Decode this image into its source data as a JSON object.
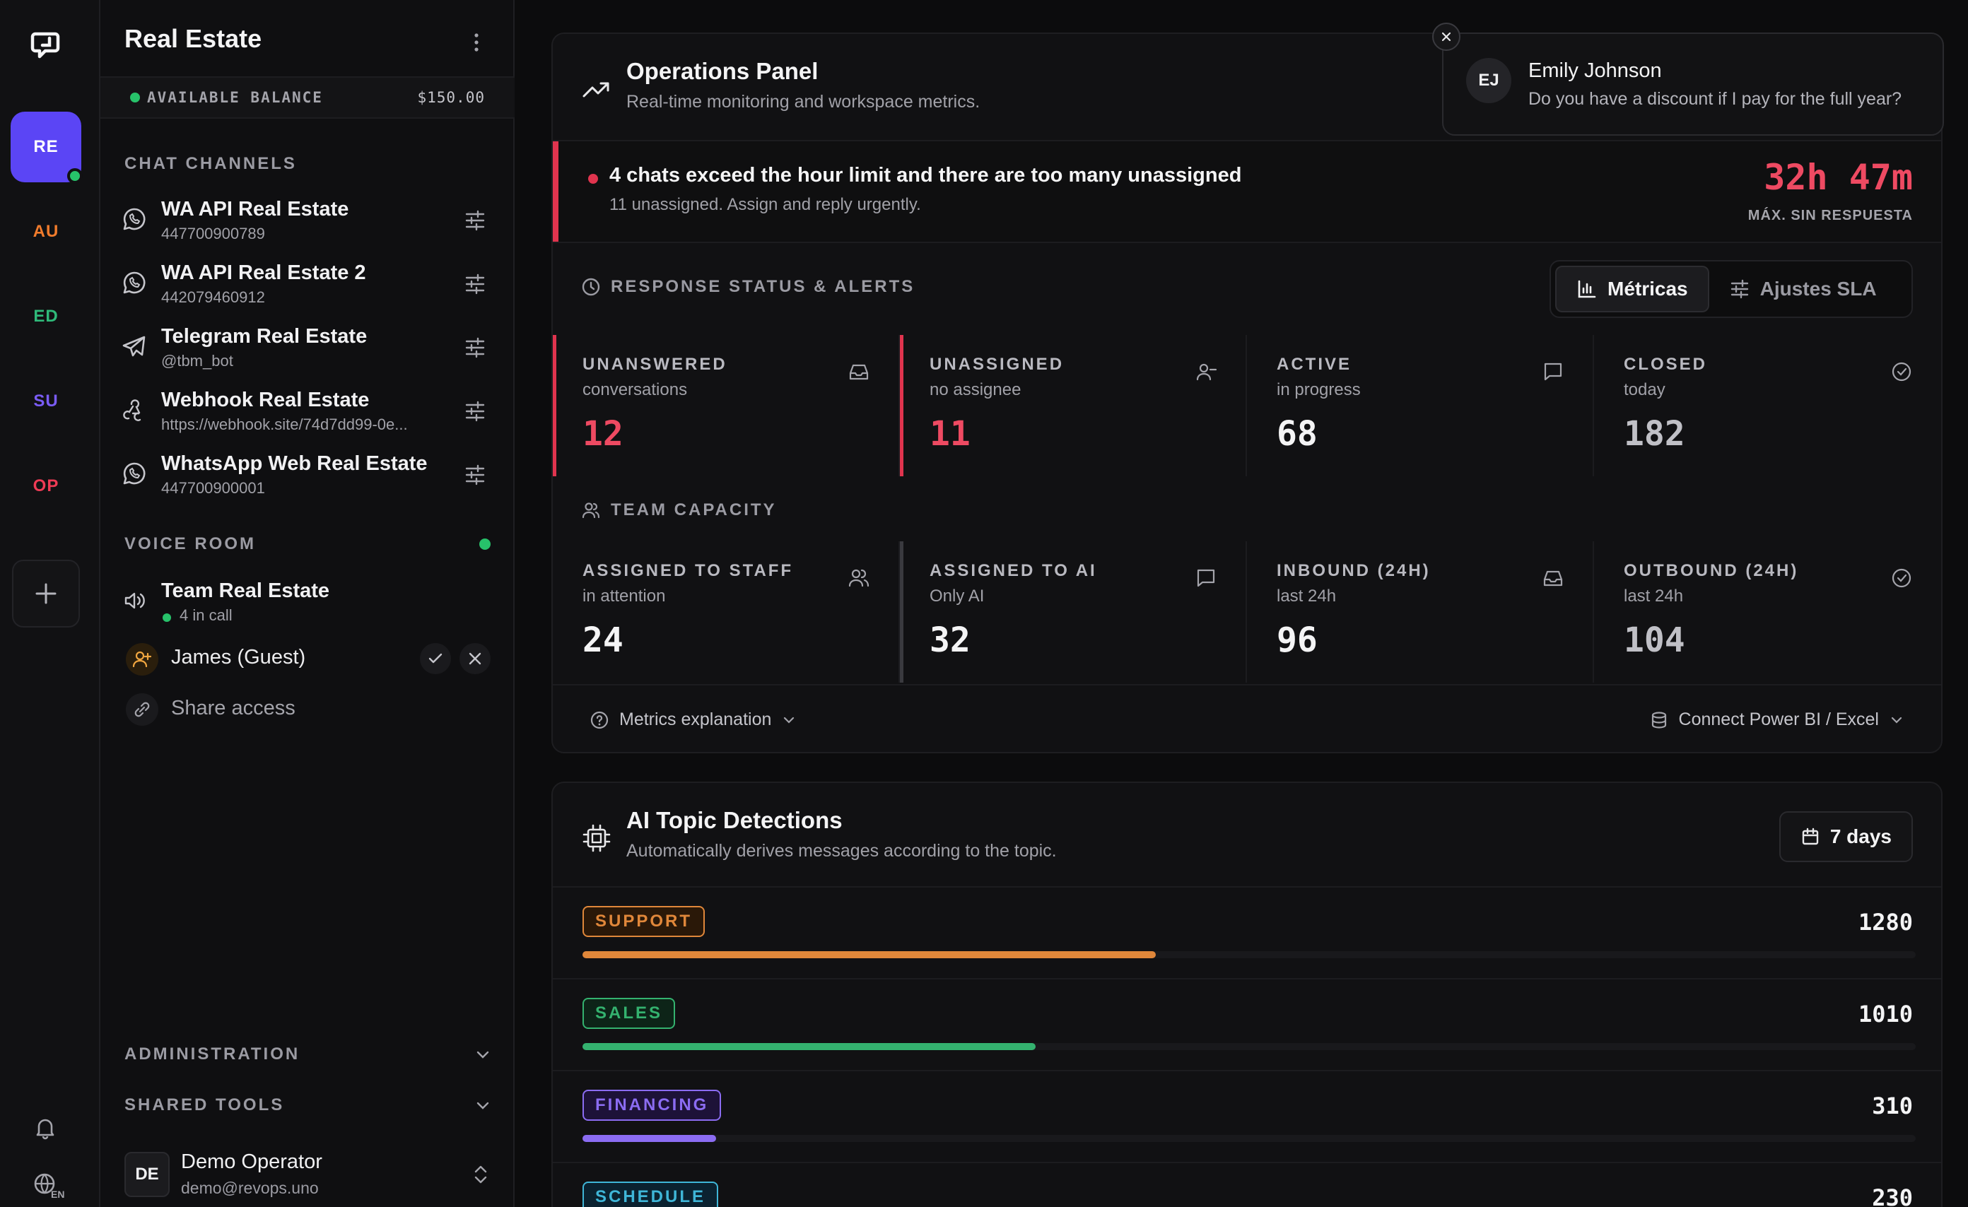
{
  "workspaces": [
    {
      "code": "RE",
      "color": "#ffffff"
    },
    {
      "code": "AU",
      "color": "#f07b2c"
    },
    {
      "code": "ED",
      "color": "#2fb979"
    },
    {
      "code": "SU",
      "color": "#7a5cf5"
    },
    {
      "code": "OP",
      "color": "#ee3b55"
    }
  ],
  "sidebar": {
    "title": "Real Estate",
    "balance_label": "AVAILABLE BALANCE",
    "balance_value": "$150.00",
    "channels_heading": "CHAT CHANNELS",
    "channels": [
      {
        "name": "WA API Real Estate",
        "sub": "447700900789",
        "icon": "whatsapp-icon"
      },
      {
        "name": "WA API Real Estate 2",
        "sub": "442079460912",
        "icon": "whatsapp-icon"
      },
      {
        "name": "Telegram Real Estate",
        "sub": "@tbm_bot",
        "icon": "telegram-icon"
      },
      {
        "name": "Webhook Real Estate",
        "sub": "https://webhook.site/74d7dd99-0e...",
        "icon": "webhook-icon"
      },
      {
        "name": "WhatsApp Web Real Estate",
        "sub": "447700900001",
        "icon": "whatsapp-icon"
      }
    ],
    "voice_heading": "VOICE ROOM",
    "voice_room": {
      "name": "Team Real Estate",
      "status": "4 in call"
    },
    "guest": "James (Guest)",
    "share_access": "Share access",
    "administration": "ADMINISTRATION",
    "shared_tools": "SHARED TOOLS",
    "user": {
      "initials": "DE",
      "name": "Demo Operator",
      "email": "demo@revops.uno"
    },
    "lang": "EN"
  },
  "ops": {
    "title": "Operations Panel",
    "subtitle": "Real-time monitoring and workspace metrics.",
    "alert_title": "4 chats exceed the hour limit and there are too many unassigned",
    "alert_sub": "11 unassigned. Assign and reply urgently.",
    "alert_time": "32h 47m",
    "alert_time_label": "MÁX. SIN RESPUESTA",
    "response_heading": "RESPONSE STATUS & ALERTS",
    "tab_metrics": "Métricas",
    "tab_sla": "Ajustes SLA",
    "response_metrics": [
      {
        "label": "UNANSWERED",
        "sub": "conversations",
        "value": "12"
      },
      {
        "label": "UNASSIGNED",
        "sub": "no assignee",
        "value": "11"
      },
      {
        "label": "ACTIVE",
        "sub": "in progress",
        "value": "68"
      },
      {
        "label": "CLOSED",
        "sub": "today",
        "value": "182"
      }
    ],
    "team_heading": "TEAM CAPACITY",
    "team_metrics": [
      {
        "label": "ASSIGNED TO STAFF",
        "sub": "in attention",
        "value": "24"
      },
      {
        "label": "ASSIGNED TO AI",
        "sub": "Only AI",
        "value": "32"
      },
      {
        "label": "INBOUND (24H)",
        "sub": "last 24h",
        "value": "96"
      },
      {
        "label": "OUTBOUND (24H)",
        "sub": "last 24h",
        "value": "104"
      }
    ],
    "metrics_explanation": "Metrics explanation",
    "connect_bi": "Connect Power BI / Excel"
  },
  "topics": {
    "title": "AI Topic Detections",
    "subtitle": "Automatically derives messages according to the topic.",
    "range": "7 days",
    "items": [
      {
        "name": "SUPPORT",
        "count": "1280",
        "fraction": 0.43,
        "color": "#e0873a",
        "bg": "#2a1808"
      },
      {
        "name": "SALES",
        "count": "1010",
        "fraction": 0.34,
        "color": "#34b26f",
        "bg": "#0d2418"
      },
      {
        "name": "FINANCING",
        "count": "310",
        "fraction": 0.1,
        "color": "#8b6cf2",
        "bg": "#1d1238"
      },
      {
        "name": "SCHEDULE",
        "count": "230",
        "fraction": 0.08,
        "color": "#3fb6d8",
        "bg": "#0b2230"
      }
    ]
  },
  "toast": {
    "initials": "EJ",
    "name": "Emily Johnson",
    "message": "Do you have a discount if I pay for the full year?"
  }
}
